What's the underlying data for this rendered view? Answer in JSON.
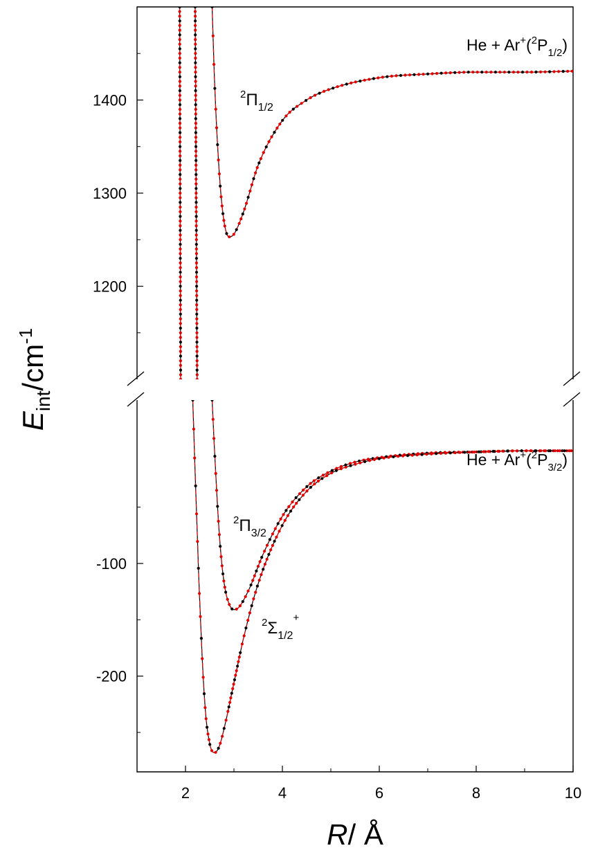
{
  "chart_data": {
    "type": "line",
    "xlabel": {
      "italic": "R",
      "rest": "/ Å"
    },
    "ylabel": {
      "italic": "E",
      "sub": "int",
      "rest": "/cm",
      "sup": "-1"
    },
    "xlim": [
      1,
      10
    ],
    "x_ticks": [
      "2",
      "4",
      "6",
      "8",
      "10"
    ],
    "broken_y_axis": true,
    "upper_panel": {
      "ylim": [
        1100,
        1500
      ],
      "y_ticks": [
        "1200",
        "1300",
        "1400"
      ],
      "asymptote_label": {
        "base": "He + Ar",
        "sup1": "+",
        "open": "(",
        "sup2": "2",
        "sym": "P",
        "sub": "1/2",
        "close": ")"
      },
      "series": [
        {
          "state": {
            "sup": "2",
            "sym": "Π",
            "sub": "1/2",
            "sup2": ""
          },
          "color_ab_initio": "#000000",
          "color_fit": "#e00000",
          "x": [
            2.55,
            2.6,
            2.7,
            2.8,
            2.9,
            3.0,
            3.2,
            3.5,
            4.0,
            4.5,
            5.0,
            6.0,
            7.0,
            8.0,
            9.0,
            10.0
          ],
          "y": [
            1500,
            1420,
            1320,
            1268,
            1253,
            1256,
            1280,
            1330,
            1378,
            1400,
            1412,
            1424,
            1428,
            1430,
            1430,
            1431
          ]
        },
        {
          "state": {
            "sup": "",
            "sym": "",
            "sub": "",
            "sup2": ""
          },
          "color_ab_initio": "#000000",
          "color_fit": "#e00000",
          "x": [
            1.88,
            1.9
          ],
          "y": [
            1500,
            1100
          ]
        },
        {
          "state": {
            "sup": "",
            "sym": "",
            "sub": "",
            "sup2": ""
          },
          "color_ab_initio": "#000000",
          "color_fit": "#e00000",
          "x": [
            2.2,
            2.24
          ],
          "y": [
            1500,
            1100
          ]
        }
      ]
    },
    "lower_panel": {
      "ylim": [
        -285,
        45
      ],
      "y_ticks": [
        "-100",
        "-200"
      ],
      "asymptote_label": {
        "base": "He + Ar",
        "sup1": "+",
        "open": "(",
        "sup2": "2",
        "sym": "P",
        "sub": "3/2",
        "close": ")"
      },
      "series": [
        {
          "state": {
            "sup": "2",
            "sym": "Π",
            "sub": "3/2",
            "sup2": ""
          },
          "color_ab_initio": "#000000",
          "color_fit": "#e00000",
          "x": [
            2.55,
            2.6,
            2.7,
            2.8,
            2.9,
            3.0,
            3.1,
            3.3,
            3.6,
            4.0,
            4.5,
            5.0,
            5.5,
            6.0,
            7.0,
            8.0,
            9.0,
            10.0
          ],
          "y": [
            45,
            0,
            -75,
            -118,
            -136,
            -141,
            -139,
            -124,
            -92,
            -58,
            -32,
            -18,
            -10,
            -6,
            -2,
            -1,
            0,
            0
          ]
        },
        {
          "state": {
            "sup": "2",
            "sym": "Σ",
            "sub": "1/2",
            "sup2": "+"
          },
          "color_ab_initio": "#000000",
          "color_fit": "#e00000",
          "x": [
            2.15,
            2.2,
            2.3,
            2.4,
            2.5,
            2.6,
            2.7,
            2.8,
            3.0,
            3.2,
            3.5,
            4.0,
            4.5,
            5.0,
            5.5,
            6.0,
            7.0,
            8.0,
            9.0,
            10.0
          ],
          "y": [
            45,
            -20,
            -140,
            -225,
            -260,
            -268,
            -262,
            -246,
            -206,
            -166,
            -118,
            -66,
            -36,
            -20,
            -12,
            -7,
            -3,
            -1,
            0,
            0
          ]
        }
      ]
    }
  }
}
